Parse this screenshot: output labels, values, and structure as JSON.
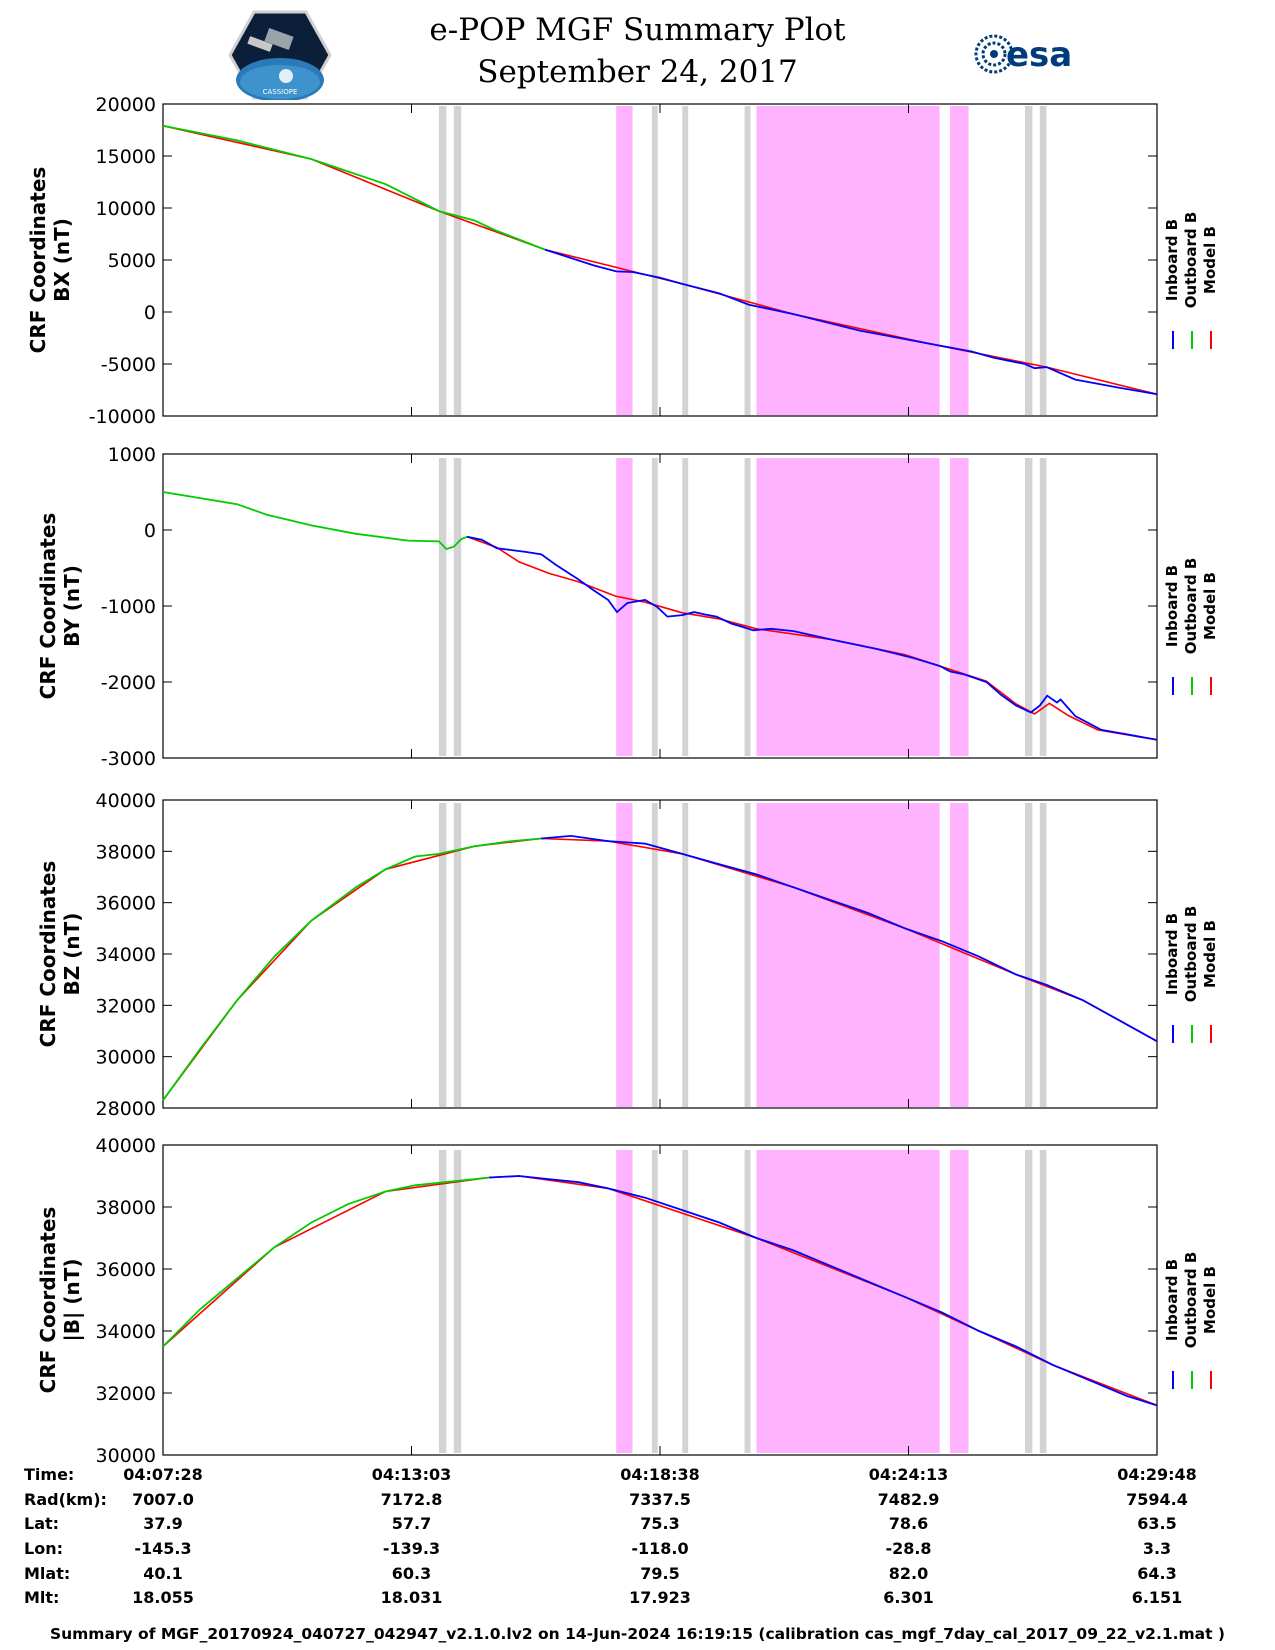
{
  "header": {
    "title": "e-POP MGF Summary Plot",
    "date": "September 24, 2017",
    "esa_logo_text": "esa",
    "cassiope_logo_text": "CASSIOPE"
  },
  "colors": {
    "inboard": "#0000ff",
    "outboard": "#00cc00",
    "model": "#ff0000",
    "gray_band": "#d3d3d3",
    "magenta_band": "#ffb3ff"
  },
  "legend": {
    "entries": [
      {
        "label": "Inboard B",
        "color": "#0000ff"
      },
      {
        "label": "Outboard B",
        "color": "#00cc00"
      },
      {
        "label": "Model B",
        "color": "#ff0000"
      }
    ]
  },
  "chart_data": {
    "type": "line",
    "x_unit": "seconds since 04:07:28",
    "xlim": [
      0,
      1340
    ],
    "x_ticks": [
      0,
      335,
      670,
      1005,
      1340
    ],
    "gray_intervals": [
      [
        372,
        382
      ],
      [
        392,
        402
      ],
      [
        659,
        667
      ],
      [
        700,
        708
      ],
      [
        784,
        792
      ],
      [
        1162,
        1172
      ],
      [
        1182,
        1191
      ]
    ],
    "magenta_intervals": [
      [
        611,
        633
      ],
      [
        800,
        1047
      ],
      [
        1061,
        1086
      ]
    ],
    "panels": [
      {
        "id": "bx",
        "ylabel_line1": "CRF Coordinates",
        "ylabel_line2": "BX (nT)",
        "ylim": [
          -10000,
          20000
        ],
        "yticks": [
          20000,
          15000,
          10000,
          5000,
          0,
          -5000,
          -10000
        ],
        "ytick_labels": [
          "20000",
          "15000",
          "10000",
          "5000",
          "0",
          "-5000",
          "-10000"
        ],
        "outboard": [
          [
            0,
            17900
          ],
          [
            100,
            16500
          ],
          [
            200,
            14700
          ],
          [
            300,
            12300
          ],
          [
            372,
            9700
          ],
          [
            420,
            8800
          ],
          [
            450,
            7800
          ],
          [
            515,
            6000
          ]
        ],
        "inboard": [
          [
            515,
            6000
          ],
          [
            580,
            4500
          ],
          [
            611,
            3900
          ],
          [
            633,
            3850
          ],
          [
            670,
            3300
          ],
          [
            700,
            2700
          ],
          [
            750,
            1800
          ],
          [
            790,
            700
          ],
          [
            850,
            -200
          ],
          [
            940,
            -1800
          ],
          [
            1030,
            -3000
          ],
          [
            1090,
            -3800
          ],
          [
            1120,
            -4400
          ],
          [
            1162,
            -5000
          ],
          [
            1175,
            -5400
          ],
          [
            1191,
            -5300
          ],
          [
            1230,
            -6500
          ],
          [
            1290,
            -7300
          ],
          [
            1340,
            -7900
          ]
        ],
        "model": [
          [
            0,
            17900
          ],
          [
            200,
            14700
          ],
          [
            372,
            9700
          ],
          [
            515,
            6000
          ],
          [
            700,
            2700
          ],
          [
            850,
            -200
          ],
          [
            1030,
            -3000
          ],
          [
            1191,
            -5300
          ],
          [
            1340,
            -7900
          ]
        ]
      },
      {
        "id": "by",
        "ylabel_line1": "CRF Coordinates",
        "ylabel_line2": "BY (nT)",
        "ylim": [
          -3000,
          1000
        ],
        "yticks": [
          1000,
          0,
          -1000,
          -2000,
          -3000
        ],
        "ytick_labels": [
          "1000",
          "0",
          "-1000",
          "-2000",
          "-3000"
        ],
        "outboard": [
          [
            0,
            500
          ],
          [
            100,
            340
          ],
          [
            140,
            200
          ],
          [
            200,
            60
          ],
          [
            260,
            -50
          ],
          [
            330,
            -140
          ],
          [
            372,
            -150
          ],
          [
            382,
            -250
          ],
          [
            392,
            -220
          ],
          [
            402,
            -120
          ],
          [
            410,
            -90
          ],
          [
            430,
            -130
          ]
        ],
        "inboard": [
          [
            410,
            -90
          ],
          [
            430,
            -130
          ],
          [
            450,
            -240
          ],
          [
            490,
            -290
          ],
          [
            510,
            -320
          ],
          [
            530,
            -460
          ],
          [
            560,
            -650
          ],
          [
            580,
            -790
          ],
          [
            600,
            -920
          ],
          [
            612,
            -1080
          ],
          [
            626,
            -960
          ],
          [
            650,
            -920
          ],
          [
            666,
            -1010
          ],
          [
            680,
            -1140
          ],
          [
            700,
            -1120
          ],
          [
            716,
            -1080
          ],
          [
            730,
            -1110
          ],
          [
            746,
            -1140
          ],
          [
            766,
            -1230
          ],
          [
            786,
            -1290
          ],
          [
            796,
            -1320
          ],
          [
            820,
            -1300
          ],
          [
            850,
            -1330
          ],
          [
            900,
            -1440
          ],
          [
            960,
            -1560
          ],
          [
            1010,
            -1680
          ],
          [
            1047,
            -1790
          ],
          [
            1061,
            -1860
          ],
          [
            1080,
            -1900
          ],
          [
            1110,
            -2000
          ],
          [
            1130,
            -2170
          ],
          [
            1150,
            -2310
          ],
          [
            1170,
            -2400
          ],
          [
            1182,
            -2310
          ],
          [
            1192,
            -2180
          ],
          [
            1205,
            -2270
          ],
          [
            1210,
            -2230
          ],
          [
            1230,
            -2450
          ],
          [
            1265,
            -2630
          ],
          [
            1300,
            -2690
          ],
          [
            1340,
            -2760
          ]
        ],
        "model": [
          [
            410,
            -90
          ],
          [
            450,
            -230
          ],
          [
            480,
            -420
          ],
          [
            520,
            -570
          ],
          [
            560,
            -680
          ],
          [
            610,
            -870
          ],
          [
            650,
            -950
          ],
          [
            700,
            -1090
          ],
          [
            750,
            -1170
          ],
          [
            800,
            -1300
          ],
          [
            900,
            -1440
          ],
          [
            1000,
            -1640
          ],
          [
            1060,
            -1830
          ],
          [
            1110,
            -1990
          ],
          [
            1150,
            -2290
          ],
          [
            1175,
            -2420
          ],
          [
            1195,
            -2280
          ],
          [
            1220,
            -2440
          ],
          [
            1260,
            -2630
          ],
          [
            1340,
            -2760
          ]
        ]
      },
      {
        "id": "bz",
        "ylabel_line1": "CRF Coordinates",
        "ylabel_line2": "BZ (nT)",
        "ylim": [
          28000,
          40000
        ],
        "yticks": [
          40000,
          38000,
          36000,
          34000,
          32000,
          30000,
          28000
        ],
        "ytick_labels": [
          "40000",
          "38000",
          "36000",
          "34000",
          "32000",
          "30000",
          "28000"
        ],
        "outboard": [
          [
            0,
            28300
          ],
          [
            50,
            30300
          ],
          [
            100,
            32200
          ],
          [
            150,
            33900
          ],
          [
            200,
            35300
          ],
          [
            260,
            36600
          ],
          [
            300,
            37300
          ],
          [
            340,
            37800
          ],
          [
            372,
            37900
          ],
          [
            420,
            38200
          ],
          [
            470,
            38400
          ],
          [
            510,
            38500
          ]
        ],
        "inboard": [
          [
            510,
            38500
          ],
          [
            550,
            38600
          ],
          [
            600,
            38400
          ],
          [
            650,
            38300
          ],
          [
            700,
            37900
          ],
          [
            750,
            37500
          ],
          [
            800,
            37100
          ],
          [
            850,
            36600
          ],
          [
            900,
            36100
          ],
          [
            950,
            35600
          ],
          [
            1000,
            35000
          ],
          [
            1050,
            34500
          ],
          [
            1100,
            33900
          ],
          [
            1150,
            33200
          ],
          [
            1191,
            32800
          ],
          [
            1240,
            32200
          ],
          [
            1290,
            31400
          ],
          [
            1340,
            30600
          ]
        ],
        "model": [
          [
            0,
            28300
          ],
          [
            100,
            32200
          ],
          [
            200,
            35300
          ],
          [
            300,
            37300
          ],
          [
            420,
            38200
          ],
          [
            510,
            38500
          ],
          [
            600,
            38400
          ],
          [
            700,
            37900
          ],
          [
            850,
            36600
          ],
          [
            1000,
            35000
          ],
          [
            1150,
            33200
          ],
          [
            1240,
            32200
          ],
          [
            1340,
            30600
          ]
        ]
      },
      {
        "id": "bmag",
        "ylabel_line1": "CRF Coordinates",
        "ylabel_line2": "|B| (nT)",
        "ylim": [
          30000,
          40000
        ],
        "yticks": [
          40000,
          38000,
          36000,
          34000,
          32000,
          30000
        ],
        "ytick_labels": [
          "40000",
          "38000",
          "36000",
          "34000",
          "32000",
          "30000"
        ],
        "outboard": [
          [
            0,
            33500
          ],
          [
            50,
            34700
          ],
          [
            100,
            35700
          ],
          [
            150,
            36700
          ],
          [
            200,
            37500
          ],
          [
            250,
            38100
          ],
          [
            300,
            38500
          ],
          [
            340,
            38700
          ],
          [
            380,
            38800
          ],
          [
            420,
            38900
          ],
          [
            440,
            38950
          ]
        ],
        "inboard": [
          [
            440,
            38950
          ],
          [
            480,
            39000
          ],
          [
            520,
            38900
          ],
          [
            560,
            38800
          ],
          [
            600,
            38600
          ],
          [
            650,
            38300
          ],
          [
            700,
            37900
          ],
          [
            750,
            37500
          ],
          [
            800,
            37000
          ],
          [
            850,
            36600
          ],
          [
            900,
            36100
          ],
          [
            950,
            35600
          ],
          [
            1000,
            35100
          ],
          [
            1050,
            34600
          ],
          [
            1100,
            34000
          ],
          [
            1150,
            33500
          ],
          [
            1200,
            32900
          ],
          [
            1250,
            32400
          ],
          [
            1300,
            31900
          ],
          [
            1340,
            31600
          ]
        ],
        "model": [
          [
            0,
            33500
          ],
          [
            150,
            36700
          ],
          [
            300,
            38500
          ],
          [
            440,
            38950
          ],
          [
            480,
            39000
          ],
          [
            600,
            38600
          ],
          [
            800,
            37000
          ],
          [
            1000,
            35100
          ],
          [
            1200,
            32900
          ],
          [
            1340,
            31600
          ]
        ]
      }
    ]
  },
  "stats": {
    "labels": [
      "Time:",
      "Rad(km):",
      "Lat:",
      "Lon:",
      "Mlat:",
      "Mlt:"
    ],
    "columns": [
      {
        "time": "04:07:28",
        "rad": "7007.0",
        "lat": "37.9",
        "lon": "-145.3",
        "mlat": "40.1",
        "mlt": "18.055"
      },
      {
        "time": "04:13:03",
        "rad": "7172.8",
        "lat": "57.7",
        "lon": "-139.3",
        "mlat": "60.3",
        "mlt": "18.031"
      },
      {
        "time": "04:18:38",
        "rad": "7337.5",
        "lat": "75.3",
        "lon": "-118.0",
        "mlat": "79.5",
        "mlt": "17.923"
      },
      {
        "time": "04:24:13",
        "rad": "7482.9",
        "lat": "78.6",
        "lon": "-28.8",
        "mlat": "82.0",
        "mlt": "6.301"
      },
      {
        "time": "04:29:48",
        "rad": "7594.4",
        "lat": "63.5",
        "lon": "3.3",
        "mlat": "64.3",
        "mlt": "6.151"
      }
    ]
  },
  "footer": {
    "text": "Summary of MGF_20170924_040727_042947_v2.1.0.lv2 on 14-Jun-2024 16:19:15 (calibration cas_mgf_7day_cal_2017_09_22_v2.1.mat )"
  }
}
